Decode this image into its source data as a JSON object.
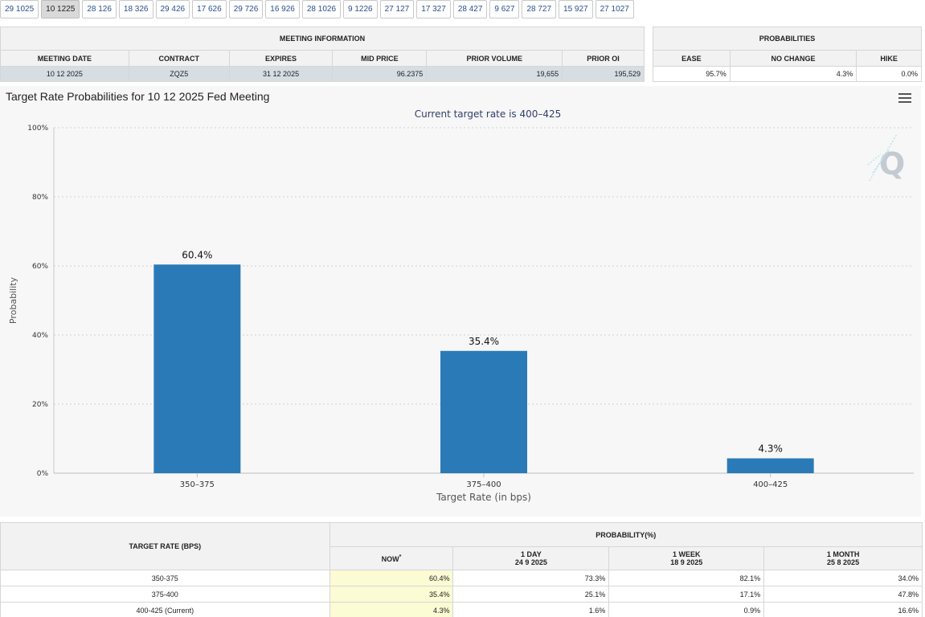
{
  "tabs": [
    "29 1025",
    "10 1225",
    "28 126",
    "18 326",
    "29 426",
    "17 626",
    "29 726",
    "16 926",
    "28 1026",
    "9 1226",
    "27 127",
    "17 327",
    "28 427",
    "9 627",
    "28 727",
    "15 927",
    "27 1027"
  ],
  "active_tab": "10 1225",
  "meeting_info": {
    "title": "MEETING INFORMATION",
    "headers": [
      "MEETING DATE",
      "CONTRACT",
      "EXPIRES",
      "MID PRICE",
      "PRIOR VOLUME",
      "PRIOR OI"
    ],
    "values": [
      "10 12 2025",
      "ZQZ5",
      "31 12 2025",
      "96.2375",
      "19,655",
      "195,529"
    ]
  },
  "probabilities": {
    "title": "PROBABILITIES",
    "headers": [
      "EASE",
      "NO CHANGE",
      "HIKE"
    ],
    "values": [
      "95.7%",
      "4.3%",
      "0.0%"
    ]
  },
  "chart": {
    "title": "Target Rate Probabilities for 10 12 2025 Fed Meeting",
    "subtitle": "Current target rate is 400–425",
    "menu_icon": "hamburger-menu-icon",
    "watermark_icon": "q-logo-icon"
  },
  "chart_data": {
    "type": "bar",
    "categories": [
      "350–375",
      "375–400",
      "400–425"
    ],
    "values": [
      60.4,
      35.4,
      4.3
    ],
    "data_labels": [
      "60.4%",
      "35.4%",
      "4.3%"
    ],
    "xlabel": "Target Rate (in bps)",
    "ylabel": "Probability",
    "ylim": [
      0,
      100
    ],
    "yticks": [
      0,
      20,
      40,
      60,
      80,
      100
    ],
    "ytick_labels": [
      "0%",
      "20%",
      "40%",
      "60%",
      "80%",
      "100%"
    ],
    "grid": true,
    "bar_color": "#2a7ab8"
  },
  "history": {
    "target_rate_header": "TARGET RATE (BPS)",
    "probability_header": "PROBABILITY(%)",
    "columns": [
      {
        "label": "NOW",
        "sub": "",
        "mark": "*"
      },
      {
        "label": "1 DAY",
        "sub": "24 9 2025",
        "mark": ""
      },
      {
        "label": "1 WEEK",
        "sub": "18 9 2025",
        "mark": ""
      },
      {
        "label": "1 MONTH",
        "sub": "25 8 2025",
        "mark": ""
      }
    ],
    "rows": [
      {
        "rate": "350-375",
        "values": [
          "60.4%",
          "73.3%",
          "82.1%",
          "34.0%"
        ]
      },
      {
        "rate": "375-400",
        "values": [
          "35.4%",
          "25.1%",
          "17.1%",
          "47.8%"
        ]
      },
      {
        "rate": "400-425 (Current)",
        "values": [
          "4.3%",
          "1.6%",
          "0.9%",
          "16.6%"
        ]
      }
    ]
  }
}
